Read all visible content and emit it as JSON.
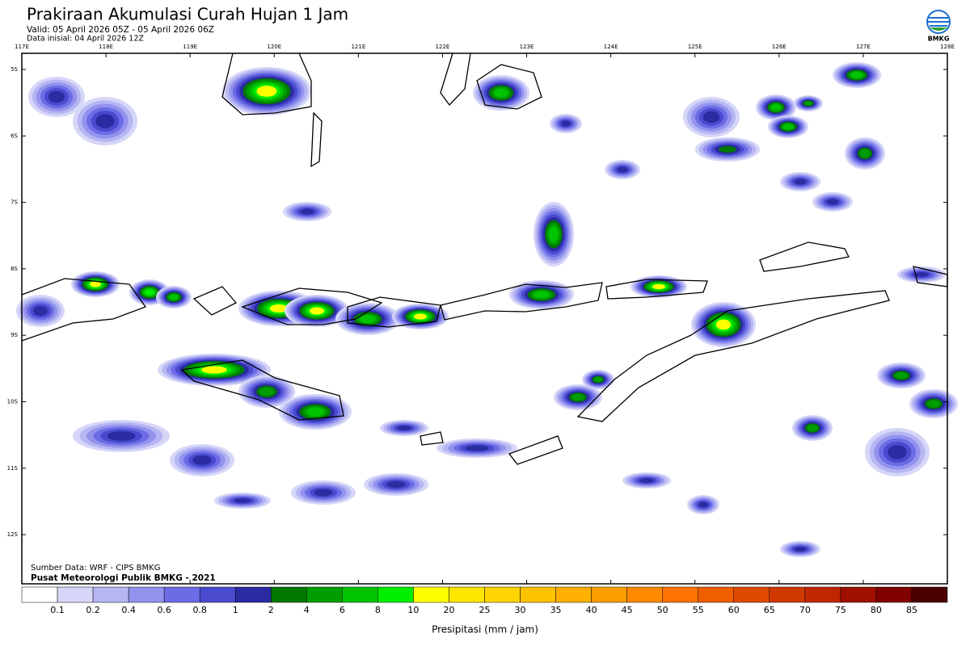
{
  "header": {
    "title": "Prakiraan Akumulasi Curah Hujan 1 Jam",
    "valid": "Valid: 05 April 2026 05Z - 05 April 2026 06Z",
    "initial": "Data inisial: 04 April 2026 12Z",
    "logo_text": "BMKG"
  },
  "map": {
    "lon_labels": [
      "117E",
      "118E",
      "119E",
      "120E",
      "121E",
      "122E",
      "123E",
      "124E",
      "125E",
      "126E",
      "127E",
      "128E"
    ],
    "lat_labels": [
      "5S",
      "6S",
      "7S",
      "8S",
      "9S",
      "10S",
      "11S",
      "12S"
    ],
    "source": "Sumber Data: WRF - CIPS BMKG",
    "credit": "Pusat Meteorologi Publik BMKG - 2021"
  },
  "colorbar": {
    "levels": [
      0.1,
      0.2,
      0.4,
      0.6,
      0.8,
      1,
      2,
      4,
      6,
      8,
      10,
      20,
      25,
      30,
      35,
      40,
      45,
      50,
      55,
      60,
      65,
      70,
      75,
      80,
      85
    ],
    "colors": [
      "#ffffff",
      "#d6d6f8",
      "#b6b6f3",
      "#9393ee",
      "#6c6ce6",
      "#4a4acf",
      "#2b2ba2",
      "#007800",
      "#009e00",
      "#00c400",
      "#00ee00",
      "#ffff00",
      "#ffe600",
      "#ffd400",
      "#ffc200",
      "#ffb000",
      "#ff9e00",
      "#ff8a00",
      "#ff7400",
      "#f05e00",
      "#e04a00",
      "#d03800",
      "#c02600",
      "#a01000",
      "#800000",
      "#4a0000"
    ],
    "label": "Presipitasi (mm / jam)"
  }
}
